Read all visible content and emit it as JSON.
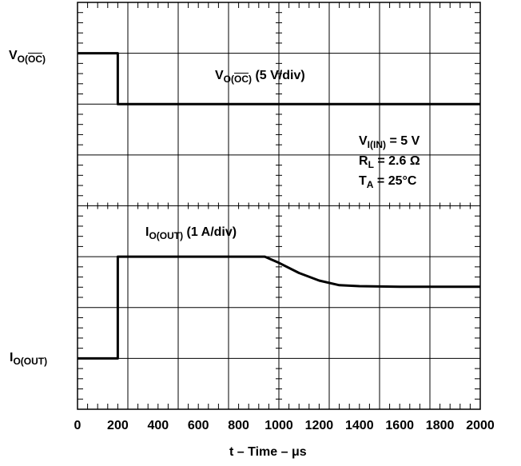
{
  "chart_data": {
    "type": "line",
    "xlabel": "t – Time – μs",
    "xlim": [
      0,
      2000
    ],
    "xticks": [
      "0",
      "200",
      "400",
      "600",
      "800",
      "1000",
      "1200",
      "1400",
      "1600",
      "1800",
      "2000"
    ],
    "gridlines": true,
    "divisions": {
      "x": 8,
      "y": 8
    },
    "series": [
      {
        "name": "V_O(OC) (5 V/div)",
        "y_unit": "div",
        "points": [
          [
            0,
            7.0
          ],
          [
            200,
            7.0
          ],
          [
            200,
            6.0
          ],
          [
            2000,
            6.0
          ]
        ]
      },
      {
        "name": "I_O(OUT) (1 A/div)",
        "y_unit": "div",
        "points": [
          [
            0,
            1.0
          ],
          [
            200,
            1.0
          ],
          [
            200,
            3.0
          ],
          [
            930,
            3.0
          ],
          [
            1000,
            2.88
          ],
          [
            1100,
            2.68
          ],
          [
            1200,
            2.53
          ],
          [
            1300,
            2.44
          ],
          [
            1400,
            2.42
          ],
          [
            1600,
            2.41
          ],
          [
            2000,
            2.41
          ]
        ]
      }
    ]
  },
  "labels": {
    "v_marker_main": "V",
    "v_marker_sub": "O(",
    "v_marker_sub_over": "OC",
    "v_marker_sub_end": ")",
    "i_marker_main": "I",
    "i_marker_sub": "O(OUT)",
    "v_trace_main": "V",
    "v_trace_sub": "O(",
    "v_trace_sub_over": "OC",
    "v_trace_sub_end": ")",
    "v_trace_scale": " (5 V/div)",
    "i_trace_main": "I",
    "i_trace_sub": "O(OUT)",
    "i_trace_scale": " (1 A/div)",
    "cond1_main": "V",
    "cond1_sub": "I(IN)",
    "cond1_rest": " = 5 V",
    "cond2_main": "R",
    "cond2_sub": "L",
    "cond2_rest": " = 2.6 Ω",
    "cond3_main": "T",
    "cond3_sub": "A",
    "cond3_rest": " = 25°C"
  }
}
